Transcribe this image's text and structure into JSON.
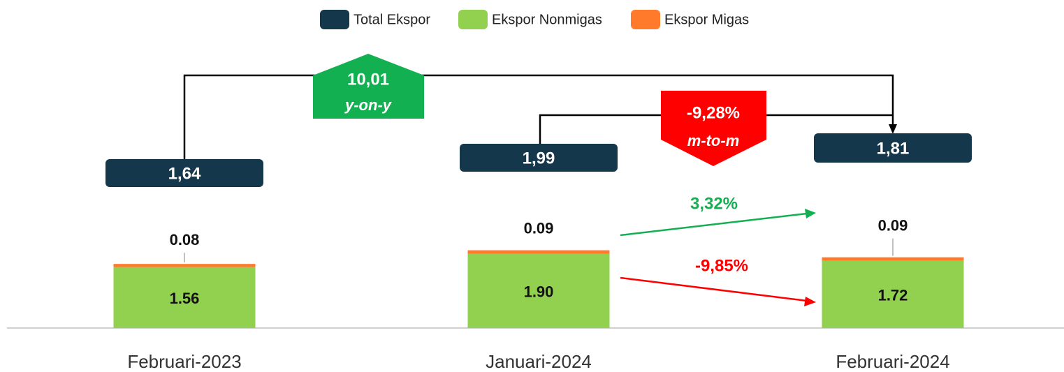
{
  "chart_data": {
    "type": "bar",
    "stacked": true,
    "categories": [
      "Februari-2023",
      "Januari-2024",
      "Februari-2024"
    ],
    "series": [
      {
        "name": "Total Ekspor",
        "color": "#14374c",
        "values": [
          1.64,
          1.99,
          1.81
        ],
        "value_labels": [
          "1,64",
          "1,99",
          "1,81"
        ]
      },
      {
        "name": "Ekspor Nonmigas",
        "color": "#92d050",
        "values": [
          1.56,
          1.9,
          1.72
        ],
        "value_labels": [
          "1.56",
          "1.90",
          "1.72"
        ]
      },
      {
        "name": "Ekspor Migas",
        "color": "#ff7a2b",
        "values": [
          0.08,
          0.09,
          0.09
        ],
        "value_labels": [
          "0.08",
          "0.09",
          "0.09"
        ]
      }
    ],
    "annotations": {
      "yoy": {
        "value": "10,01",
        "label": "y-on-y",
        "color": "#12b050"
      },
      "mtm": {
        "value": "-9,28%",
        "label": "m-to-m",
        "color": "#ff0000"
      },
      "migas_change": {
        "value": "3,32%",
        "color": "#12b050"
      },
      "nonmigas_change": {
        "value": "-9,85%",
        "color": "#ff0000"
      }
    }
  }
}
